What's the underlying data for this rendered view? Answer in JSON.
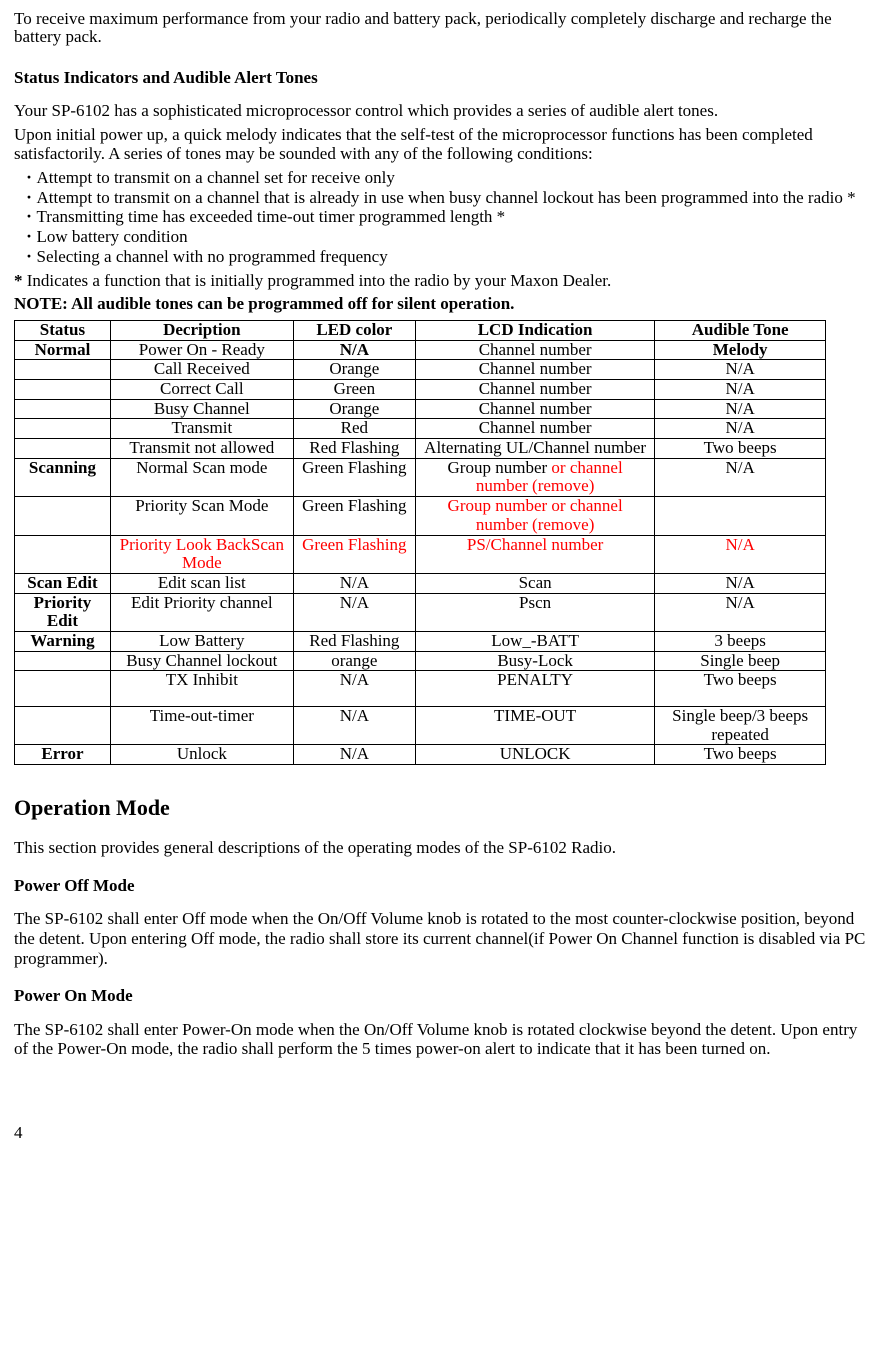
{
  "intro_para": "To receive maximum performance from your radio and battery pack, periodically completely discharge and recharge the battery pack.",
  "status_heading": "Status Indicators and Audible Alert Tones",
  "status_p1": "Your SP-6102 has a sophisticated microprocessor control which provides a series of audible alert tones.",
  "status_p2": "Upon initial power up, a quick melody indicates that the self-test of the microprocessor functions has been completed satisfactorily. A series of tones may be sounded with any of the following conditions:",
  "bullets": [
    "Attempt to transmit on a channel set for receive only",
    "Attempt to transmit on a channel that is already in use when busy   channel lockout has been programmed into the radio *",
    "Transmitting time has exceeded time-out timer programmed length *",
    "Low battery condition",
    "Selecting a channel with no programmed frequency"
  ],
  "footnote_star": "*",
  "footnote_text": " Indicates a function that is initially programmed into the radio by your  Maxon Dealer.",
  "note_line": "NOTE: All audible tones can be programmed off for silent operation.",
  "table": {
    "headers": [
      "Status",
      "Decription",
      "LED color",
      "LCD Indication",
      "Audible Tone"
    ],
    "rows": [
      {
        "c": [
          "Normal",
          "Power On - Ready",
          "N/A",
          "Channel number",
          "Melody"
        ],
        "bold0": true,
        "bold2": true,
        "bold4": true
      },
      {
        "c": [
          "",
          "Call Received",
          "Orange",
          "Channel number",
          "N/A"
        ]
      },
      {
        "c": [
          "",
          "Correct Call",
          "Green",
          "Channel number",
          "N/A"
        ]
      },
      {
        "c": [
          "",
          "Busy Channel",
          "Orange",
          "Channel number",
          "N/A"
        ]
      },
      {
        "c": [
          "",
          "Transmit",
          "Red",
          "Channel number",
          "N/A"
        ]
      },
      {
        "c": [
          "",
          "Transmit not allowed",
          "Red Flashing",
          "Alternating UL/Channel number",
          "Two beeps"
        ]
      },
      {
        "c": [
          "Scanning",
          "Normal Scan mode",
          "Green Flashing",
          "Group number ",
          "N/A"
        ],
        "bold0": true,
        "lcd_red_suffix": "or channel number (remove)"
      },
      {
        "c": [
          "",
          "Priority Scan Mode",
          "Green Flashing",
          "",
          ""
        ],
        "lcd_red": "Group number or channel number (remove)"
      },
      {
        "c": [
          "",
          "Priority Look BackScan Mode",
          "Green Flashing",
          "PS/Channel number",
          "N/A"
        ],
        "row_red": [
          1,
          2,
          3,
          4
        ]
      },
      {
        "c": [
          "Scan Edit",
          "Edit scan list",
          "N/A",
          "Scan",
          "N/A"
        ],
        "bold0": true
      },
      {
        "c": [
          "Priority Edit",
          "Edit Priority channel",
          "N/A",
          "Pscn",
          "N/A"
        ],
        "bold0": true
      },
      {
        "c": [
          "Warning",
          "Low Battery",
          "Red Flashing",
          "Low_-BATT",
          "3 beeps"
        ],
        "bold0": true
      },
      {
        "c": [
          "",
          "Busy Channel lockout",
          "orange",
          "Busy-Lock",
          "Single beep"
        ]
      },
      {
        "c": [
          "",
          "TX Inhibit",
          "N/A",
          "PENALTY",
          "Two beeps"
        ],
        "pad": true
      },
      {
        "c": [
          "",
          "Time-out-timer",
          "N/A",
          "TIME-OUT",
          "Single beep/3 beeps repeated"
        ]
      },
      {
        "c": [
          "Error",
          "Unlock",
          "N/A",
          "UNLOCK",
          "Two beeps"
        ],
        "bold0": true
      }
    ]
  },
  "op_mode_heading": "Operation Mode",
  "op_mode_p": " This section provides general descriptions of the operating modes of the SP-6102 Radio.",
  "power_off_heading": "Power Off Mode",
  "power_off_p": " The SP-6102 shall enter Off mode when the On/Off Volume knob is rotated to the most counter-clockwise position, beyond the detent. Upon entering Off mode, the radio shall store its current channel(if Power On Channel function is disabled via PC programmer).",
  "power_on_heading": "Power On Mode",
  "power_on_p": " The SP-6102 shall enter Power-On mode when the On/Off Volume knob is rotated clockwise beyond the detent. Upon entry of the Power-On mode, the radio shall perform the 5 times power-on alert to indicate that it has been turned on.",
  "page_number": "4"
}
